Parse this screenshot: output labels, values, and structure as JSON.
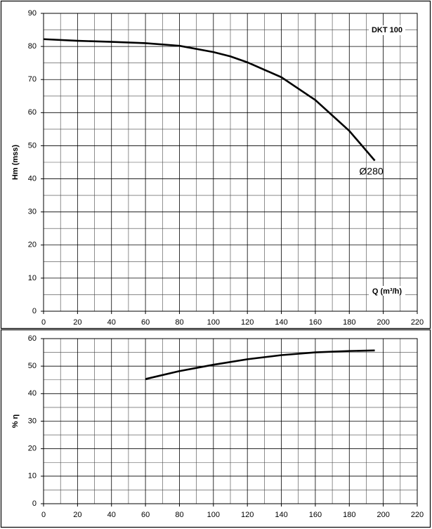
{
  "chart_data": [
    {
      "type": "line",
      "y_label": "Hm (mss)",
      "x_label": "Q (m³/h)",
      "label": "DKT 100",
      "xlim": [
        0,
        220
      ],
      "xticks": [
        0,
        20,
        40,
        60,
        80,
        100,
        120,
        140,
        160,
        180,
        200,
        220
      ],
      "ylim": [
        0,
        90
      ],
      "yticks": [
        0,
        10,
        20,
        30,
        40,
        50,
        60,
        70,
        80,
        90
      ],
      "grid": true,
      "series": [
        {
          "name": "Ø280",
          "color": "#000000",
          "label_color": "#e0007a",
          "x": [
            0,
            20,
            40,
            60,
            80,
            100,
            110,
            120,
            140,
            160,
            180,
            195
          ],
          "values": [
            82.2,
            81.7,
            81.4,
            81.0,
            80.2,
            78.3,
            77.0,
            75.2,
            70.7,
            63.8,
            54.5,
            45.5
          ]
        }
      ]
    },
    {
      "type": "line",
      "y_label": "% η",
      "xlim": [
        0,
        220
      ],
      "xticks": [
        0,
        20,
        40,
        60,
        80,
        100,
        120,
        140,
        160,
        180,
        200,
        220
      ],
      "ylim": [
        0,
        60
      ],
      "yticks": [
        0,
        10,
        20,
        30,
        40,
        50,
        60
      ],
      "grid": true,
      "series": [
        {
          "color": "#000000",
          "x": [
            60,
            80,
            100,
            120,
            140,
            160,
            180,
            195
          ],
          "values": [
            45.3,
            48.2,
            50.5,
            52.5,
            54.0,
            55.0,
            55.5,
            55.7
          ]
        }
      ]
    }
  ]
}
